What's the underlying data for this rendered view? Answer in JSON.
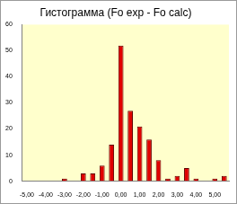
{
  "chart_data": {
    "type": "histogram",
    "title": "Гистограмма (Fo exp - Fo calc)",
    "bins": [
      -5.25,
      -4.75,
      -4.25,
      -3.75,
      -3.25,
      -2.75,
      -2.25,
      -1.75,
      -1.25,
      -0.75,
      -0.25,
      0.25,
      0.75,
      1.25,
      1.75,
      2.25,
      2.75,
      3.25,
      3.75,
      4.25,
      4.75,
      5.25,
      5.75
    ],
    "values": [
      0,
      0,
      0,
      0,
      1,
      0,
      3,
      3,
      6,
      14,
      52,
      27,
      21,
      16,
      8,
      1,
      2,
      5,
      1,
      0,
      1,
      2
    ],
    "color": "#e00000",
    "xlim": [
      -5.25,
      5.75
    ],
    "xticks": [
      {
        "value": -5,
        "label": "-5,00"
      },
      {
        "value": -4,
        "label": "-4,00"
      },
      {
        "value": -3,
        "label": "-3,00"
      },
      {
        "value": -2,
        "label": "-2,00"
      },
      {
        "value": -1,
        "label": "-1,00"
      },
      {
        "value": 0,
        "label": "0,00"
      },
      {
        "value": 1,
        "label": "1,00"
      },
      {
        "value": 2,
        "label": "2,00"
      },
      {
        "value": 3,
        "label": "3,00"
      },
      {
        "value": 4,
        "label": "4,00"
      },
      {
        "value": 5,
        "label": "5,00"
      }
    ],
    "ylim": [
      0,
      60
    ],
    "yticks": [
      0,
      10,
      20,
      30,
      40,
      50,
      60
    ],
    "grid": false
  }
}
